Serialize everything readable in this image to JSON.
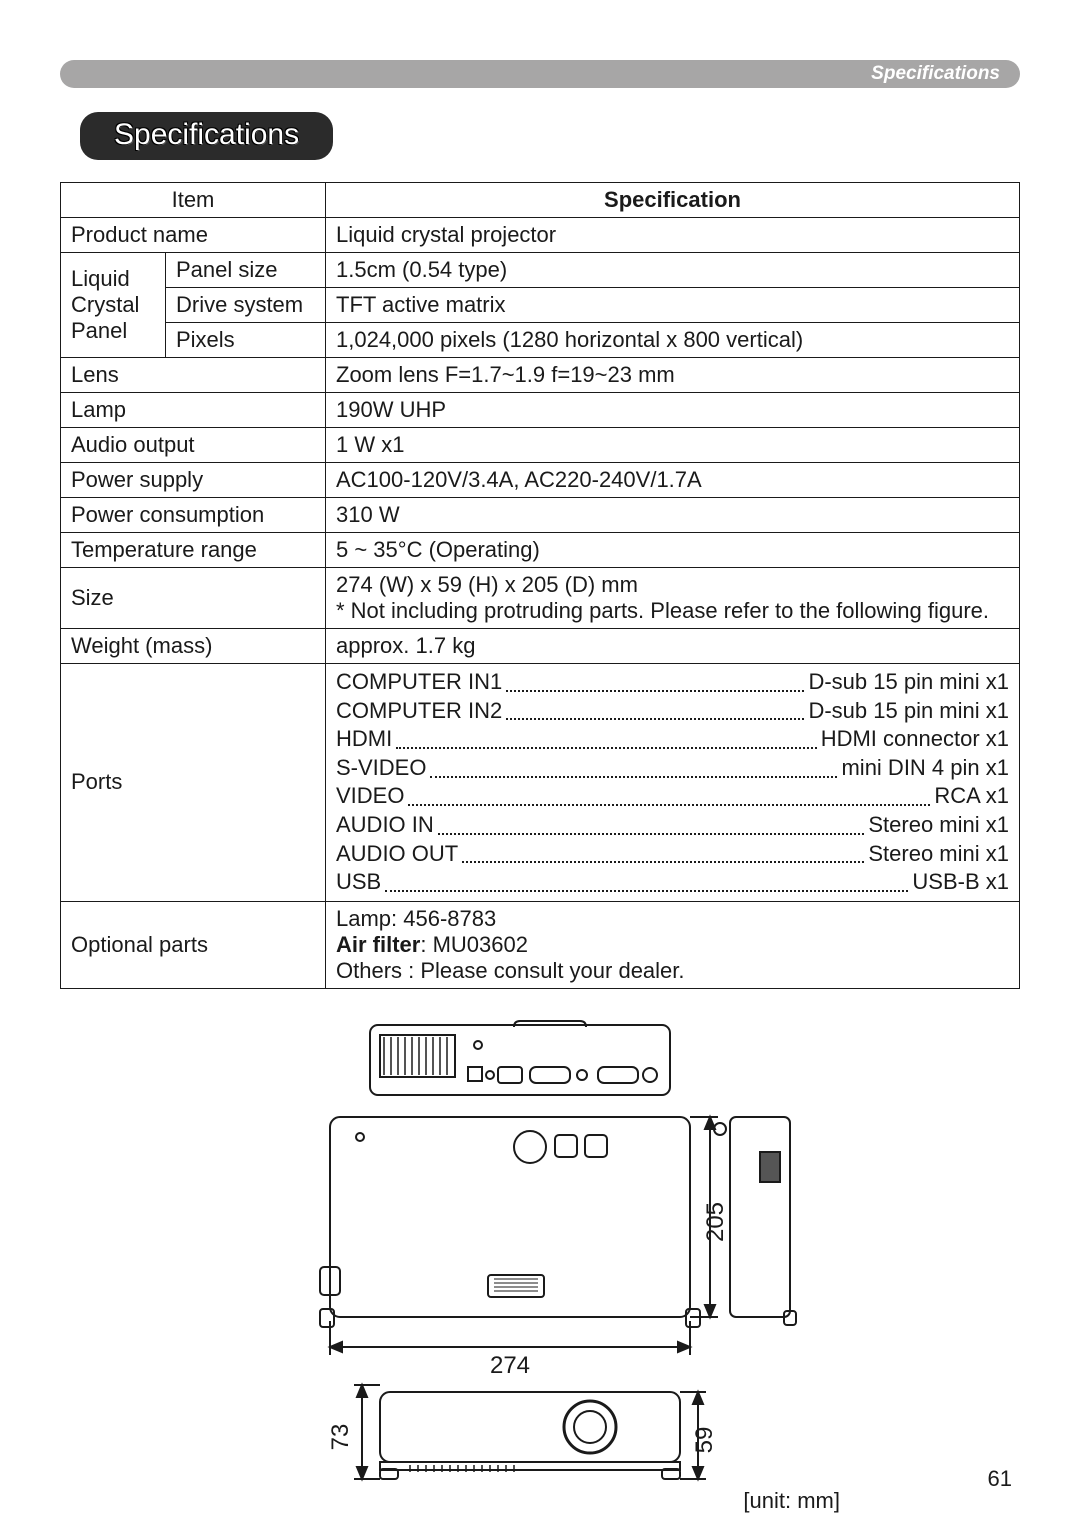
{
  "header": {
    "breadcrumb": "Specifications"
  },
  "section": {
    "title": "Specifications"
  },
  "table": {
    "head": {
      "item": "Item",
      "spec": "Specification"
    },
    "rows": {
      "product_name": {
        "label": "Product name",
        "value": "Liquid crystal projector"
      },
      "lcp_group_label": "Liquid Crystal Panel",
      "panel_size": {
        "label": "Panel size",
        "value": "1.5cm (0.54 type)"
      },
      "drive_system": {
        "label": "Drive system",
        "value": "TFT active matrix"
      },
      "pixels": {
        "label": "Pixels",
        "value": "1,024,000 pixels (1280 horizontal x 800 vertical)"
      },
      "lens": {
        "label": "Lens",
        "value": "Zoom lens F=1.7~1.9   f=19~23 mm"
      },
      "lamp": {
        "label": "Lamp",
        "value": "190W UHP"
      },
      "audio_out": {
        "label": "Audio output",
        "value": "1 W x1"
      },
      "power_supply": {
        "label": "Power supply",
        "value": "AC100-120V/3.4A, AC220-240V/1.7A"
      },
      "power_cons": {
        "label": "Power consumption",
        "value": "310 W"
      },
      "temp_range": {
        "label": "Temperature range",
        "value": "5 ~ 35°C (Operating)"
      },
      "size": {
        "label": "Size",
        "line1": "274 (W) x 59 (H) x 205 (D) mm",
        "line2": "* Not including protruding parts. Please refer to the following figure."
      },
      "weight": {
        "label": "Weight (mass)",
        "value": "approx. 1.7 kg"
      },
      "ports": {
        "label": "Ports",
        "lines": [
          {
            "l": "COMPUTER IN1",
            "r": "D-sub 15 pin mini x1"
          },
          {
            "l": "COMPUTER IN2",
            "r": "D-sub 15 pin mini x1"
          },
          {
            "l": "HDMI",
            "r": "HDMI connector x1"
          },
          {
            "l": "S-VIDEO",
            "r": "mini DIN 4 pin x1"
          },
          {
            "l": "VIDEO",
            "r": "RCA x1"
          },
          {
            "l": "AUDIO IN",
            "r": "Stereo mini x1"
          },
          {
            "l": "AUDIO OUT",
            "r": "Stereo mini x1"
          },
          {
            "l": "USB",
            "r": "USB-B x1"
          }
        ]
      },
      "optional": {
        "label": "Optional parts",
        "lamp": "Lamp: 456-8783",
        "air_label": "Air filter",
        "air_value": ": MU03602",
        "others": "Others : Please consult your dealer."
      }
    }
  },
  "figure": {
    "unit_note": "[unit: mm]",
    "dims": {
      "width": "274",
      "depth": "205",
      "height_front": "73",
      "height_rear": "59"
    },
    "colors": {
      "stroke": "#1a1a1a",
      "fill_light": "#ffffff",
      "fill_gray": "#e4e4e4",
      "hatch": "#555555"
    }
  },
  "page_number": "61"
}
